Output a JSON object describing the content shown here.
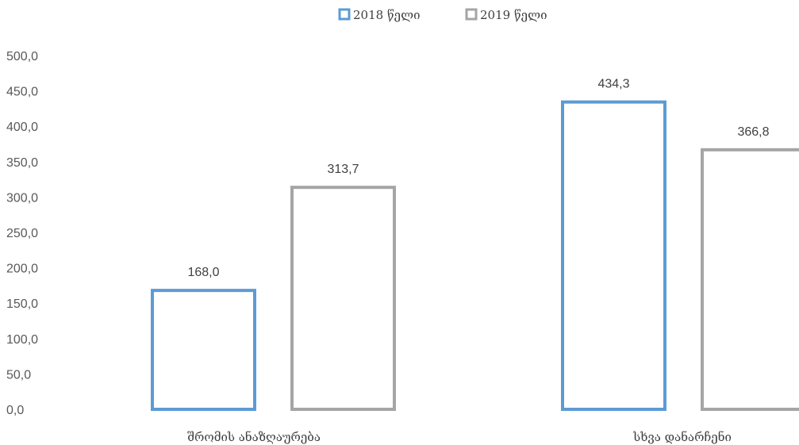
{
  "chart_data": {
    "type": "bar",
    "categories": [
      "შრომის ანაზღაურება",
      "სხვა დანარჩენი"
    ],
    "series": [
      {
        "name": "2018 წელი",
        "values": [
          168.0,
          434.3
        ],
        "color": "#5b9bd5"
      },
      {
        "name": "2019 წელი",
        "values": [
          313.7,
          366.8
        ],
        "color": "#a5a5a5"
      }
    ],
    "data_labels": [
      [
        "168,0",
        "434,3"
      ],
      [
        "313,7",
        "366,8"
      ]
    ],
    "y_ticks": [
      "0,0",
      "50,0",
      "100,0",
      "150,0",
      "200,0",
      "250,0",
      "300,0",
      "350,0",
      "400,0",
      "450,0",
      "500,0"
    ],
    "ylim": [
      0,
      500
    ],
    "title": "",
    "xlabel": "",
    "ylabel": "",
    "legend": "top-center",
    "grid": false,
    "bar_style": "outline"
  }
}
